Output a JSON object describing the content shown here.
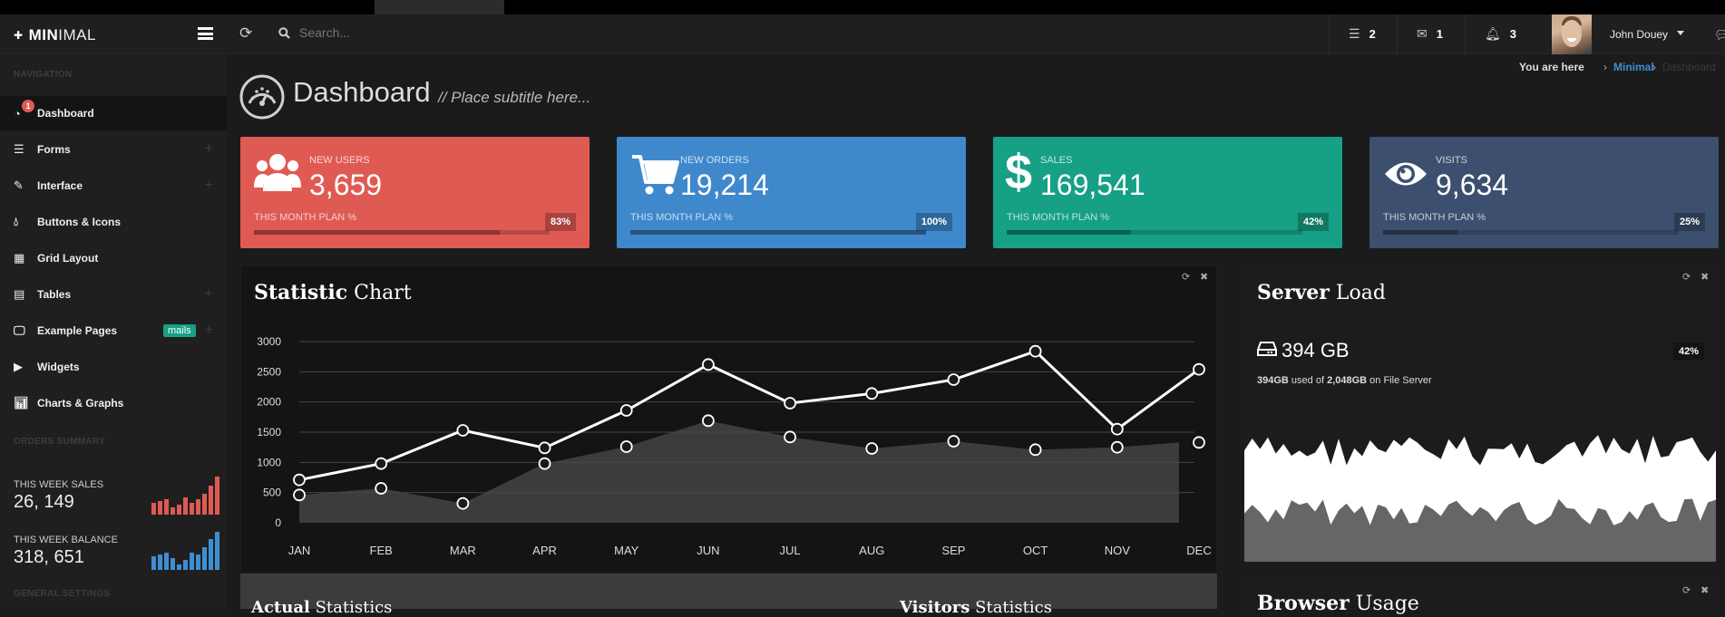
{
  "topbar": {
    "logo_bold": "MIN",
    "logo_rest": "IMAL",
    "search_placeholder": "Search...",
    "counters": [
      {
        "icon": "tasks-icon",
        "count": "2"
      },
      {
        "icon": "envelope-icon",
        "count": "1"
      },
      {
        "icon": "bell-icon",
        "count": "3"
      }
    ],
    "user_name": "John Douey"
  },
  "sidebar": {
    "navigation_heading": "NAVIGATION",
    "items": [
      {
        "label": "Dashboard",
        "icon": "dashboard-icon",
        "badge": "1"
      },
      {
        "label": "Forms",
        "icon": "list-icon"
      },
      {
        "label": "Interface",
        "icon": "pencil-icon"
      },
      {
        "label": "Buttons & Icons",
        "icon": "tint-icon"
      },
      {
        "label": "Grid Layout",
        "icon": "grid-icon"
      },
      {
        "label": "Tables",
        "icon": "table-icon"
      },
      {
        "label": "Example Pages",
        "icon": "desktop-icon",
        "badge": "mails"
      },
      {
        "label": "Widgets",
        "icon": "play-circle-icon"
      },
      {
        "label": "Charts & Graphs",
        "icon": "bar-chart-icon"
      }
    ],
    "orders_heading": "ORDERS SUMMARY",
    "summary": [
      {
        "label": "THIS WEEK SALES",
        "value": "26, 149",
        "color": "#e05a54",
        "bars": [
          0.3,
          0.35,
          0.4,
          0.2,
          0.25,
          0.45,
          0.3,
          0.4,
          0.55,
          0.75,
          1.0
        ]
      },
      {
        "label": "THIS WEEK BALANCE",
        "value": "318, 651",
        "color": "#3f8ed3",
        "bars": [
          0.35,
          0.4,
          0.45,
          0.3,
          0.15,
          0.25,
          0.45,
          0.4,
          0.6,
          0.8,
          1.0
        ]
      }
    ],
    "settings_heading": "GENERAL SETTINGS"
  },
  "page": {
    "title": "Dashboard",
    "subtitle": "// Place subtitle here...",
    "breadcrumb": {
      "prefix": "You are here",
      "link": "Minimal",
      "current": "Dashboard"
    }
  },
  "stats": [
    {
      "label": "NEW USERS",
      "value": "3,659",
      "plan": "THIS MONTH PLAN %",
      "pct": "83%",
      "fill": 0.83,
      "color": "#e05a54",
      "icon": "users-icon"
    },
    {
      "label": "NEW ORDERS",
      "value": "19,214",
      "plan": "THIS MONTH PLAN %",
      "pct": "100%",
      "fill": 1.0,
      "color": "#3f88cc",
      "icon": "cart-icon"
    },
    {
      "label": "SALES",
      "value": "169,541",
      "plan": "THIS MONTH PLAN %",
      "pct": "42%",
      "fill": 0.42,
      "color": "#16a085",
      "icon": "dollar-icon"
    },
    {
      "label": "VISITS",
      "value": "9,634",
      "plan": "THIS MONTH PLAN %",
      "pct": "25%",
      "fill": 0.25,
      "color": "#3d4f6e",
      "icon": "eye-icon"
    }
  ],
  "statistic_panel": {
    "title_bold": "Statistic",
    "title_rest": "Chart"
  },
  "chart_data": {
    "type": "line",
    "categories": [
      "JAN",
      "FEB",
      "MAR",
      "APR",
      "MAY",
      "JUN",
      "JUL",
      "AUG",
      "SEP",
      "OCT",
      "NOV",
      "DEC"
    ],
    "yticks": [
      0,
      500,
      1000,
      1500,
      2000,
      2500,
      3000
    ],
    "ylim": [
      0,
      3000
    ],
    "series": [
      {
        "values": [
          710,
          980,
          1530,
          1240,
          1860,
          2620,
          1980,
          2140,
          2370,
          2840,
          1550,
          2540
        ],
        "style": "line",
        "color": "#ffffff"
      },
      {
        "values": [
          460,
          570,
          320,
          980,
          1260,
          1690,
          1420,
          1230,
          1350,
          1210,
          1250,
          1330
        ],
        "style": "area",
        "color": "#555555"
      }
    ]
  },
  "server_panel": {
    "title_bold": "Server",
    "title_rest": "Load",
    "value": "394 GB",
    "pct": "42%",
    "used": "394GB",
    "used_text": "used of",
    "total": "2,048GB",
    "suffix": "on File Server"
  },
  "bottom": {
    "actual_bold": "Actual",
    "actual_rest": "Statistics",
    "visitors_bold": "Visitors",
    "visitors_rest": "Statistics",
    "browser_bold": "Browser",
    "browser_rest": "Usage"
  }
}
